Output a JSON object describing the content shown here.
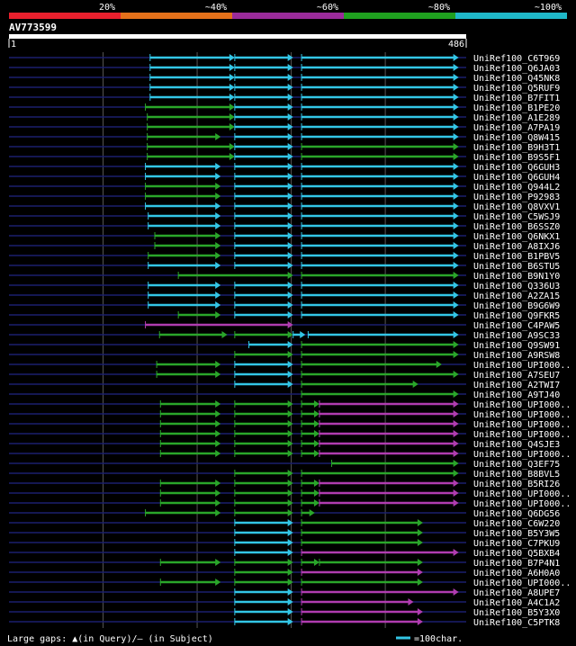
{
  "legend": {
    "ticks": [
      {
        "label": "20%",
        "color": "#e8202d"
      },
      {
        "label": "~40%",
        "color": "#e5711a"
      },
      {
        "label": "~60%",
        "color": "#9a2b9a"
      },
      {
        "label": "~80%",
        "color": "#1fa01f"
      },
      {
        "label": "~100%",
        "color": "#1fb8c8"
      }
    ]
  },
  "query": {
    "name": "AV773599",
    "start_label": "1",
    "end_label": "486",
    "length": 486
  },
  "colors": {
    "cyan": "#33c6e6",
    "green": "#2aa62a",
    "magenta": "#b03cb0",
    "navy": "#1a1f6e",
    "grid": "#555555"
  },
  "footer": {
    "gaps_text": "Large gaps: ▲(in Query)/– (in Subject)",
    "scale_text": "=100char."
  },
  "chart_data": {
    "type": "alignment-overview",
    "x_unit": "query residue",
    "rows": [
      {
        "label": "UniRef100_C6T969",
        "segs": [
          [
            150,
            240,
            "c"
          ],
          [
            240,
            302,
            "c"
          ],
          [
            311,
            478,
            "c"
          ]
        ]
      },
      {
        "label": "UniRef100_Q6JA03",
        "segs": [
          [
            150,
            240,
            "c"
          ],
          [
            240,
            302,
            "c"
          ],
          [
            311,
            478,
            "c"
          ]
        ]
      },
      {
        "label": "UniRef100_Q45NK8",
        "segs": [
          [
            150,
            240,
            "c"
          ],
          [
            240,
            302,
            "c"
          ],
          [
            311,
            478,
            "c"
          ]
        ]
      },
      {
        "label": "UniRef100_Q5RUF9",
        "segs": [
          [
            150,
            240,
            "c"
          ],
          [
            240,
            302,
            "c"
          ],
          [
            311,
            478,
            "c"
          ]
        ]
      },
      {
        "label": "UniRef100_B7FIT1",
        "segs": [
          [
            150,
            240,
            "c"
          ],
          [
            240,
            302,
            "c"
          ],
          [
            311,
            478,
            "c"
          ]
        ]
      },
      {
        "label": "UniRef100_B1PE20",
        "segs": [
          [
            145,
            240,
            "g"
          ],
          [
            240,
            302,
            "c"
          ],
          [
            311,
            478,
            "c"
          ]
        ]
      },
      {
        "label": "UniRef100_A1E289",
        "segs": [
          [
            147,
            240,
            "g"
          ],
          [
            240,
            302,
            "c"
          ],
          [
            311,
            478,
            "c"
          ]
        ]
      },
      {
        "label": "UniRef100_A7PA19",
        "segs": [
          [
            147,
            240,
            "g"
          ],
          [
            240,
            302,
            "c"
          ],
          [
            311,
            478,
            "c"
          ]
        ]
      },
      {
        "label": "UniRef100_Q8W415",
        "segs": [
          [
            147,
            225,
            "g"
          ],
          [
            240,
            302,
            "c"
          ],
          [
            311,
            478,
            "c"
          ]
        ]
      },
      {
        "label": "UniRef100_B9H3T1",
        "segs": [
          [
            147,
            240,
            "g"
          ],
          [
            240,
            302,
            "c"
          ],
          [
            311,
            478,
            "g"
          ]
        ]
      },
      {
        "label": "UniRef100_B9S5F1",
        "segs": [
          [
            147,
            240,
            "g"
          ],
          [
            240,
            302,
            "c"
          ],
          [
            311,
            478,
            "g"
          ]
        ]
      },
      {
        "label": "UniRef100_Q6GUH3",
        "segs": [
          [
            145,
            225,
            "c"
          ],
          [
            240,
            302,
            "c"
          ],
          [
            311,
            478,
            "c"
          ]
        ]
      },
      {
        "label": "UniRef100_Q6GUH4",
        "segs": [
          [
            145,
            225,
            "c"
          ],
          [
            240,
            302,
            "c"
          ],
          [
            311,
            478,
            "c"
          ]
        ]
      },
      {
        "label": "UniRef100_Q944L2",
        "segs": [
          [
            145,
            225,
            "g"
          ],
          [
            240,
            302,
            "c"
          ],
          [
            311,
            478,
            "c"
          ]
        ]
      },
      {
        "label": "UniRef100_P92983",
        "segs": [
          [
            145,
            225,
            "g"
          ],
          [
            240,
            302,
            "c"
          ],
          [
            311,
            478,
            "c"
          ]
        ]
      },
      {
        "label": "UniRef100_Q8VXV1",
        "segs": [
          [
            145,
            225,
            "c"
          ],
          [
            240,
            302,
            "c"
          ],
          [
            311,
            478,
            "c"
          ]
        ]
      },
      {
        "label": "UniRef100_C5WSJ9",
        "segs": [
          [
            148,
            225,
            "c"
          ],
          [
            240,
            302,
            "c"
          ],
          [
            311,
            478,
            "c"
          ]
        ]
      },
      {
        "label": "UniRef100_B6SSZ0",
        "segs": [
          [
            148,
            225,
            "c"
          ],
          [
            240,
            302,
            "c"
          ],
          [
            311,
            478,
            "c"
          ]
        ]
      },
      {
        "label": "UniRef100_Q6NKX1",
        "segs": [
          [
            155,
            225,
            "g"
          ],
          [
            240,
            302,
            "c"
          ],
          [
            311,
            478,
            "c"
          ]
        ]
      },
      {
        "label": "UniRef100_A8IXJ6",
        "segs": [
          [
            155,
            225,
            "g"
          ],
          [
            240,
            302,
            "c"
          ],
          [
            311,
            478,
            "c"
          ]
        ]
      },
      {
        "label": "UniRef100_B1PBV5",
        "segs": [
          [
            148,
            225,
            "g"
          ],
          [
            240,
            302,
            "c"
          ],
          [
            311,
            478,
            "c"
          ]
        ]
      },
      {
        "label": "UniRef100_B6STU5",
        "segs": [
          [
            148,
            225,
            "c"
          ],
          [
            240,
            302,
            "c"
          ],
          [
            311,
            478,
            "c"
          ]
        ]
      },
      {
        "label": "UniRef100_B9N1Y0",
        "segs": [
          [
            180,
            302,
            "g"
          ],
          [
            311,
            478,
            "g"
          ]
        ]
      },
      {
        "label": "UniRef100_Q336U3",
        "segs": [
          [
            148,
            225,
            "c"
          ],
          [
            240,
            302,
            "c"
          ],
          [
            311,
            478,
            "c"
          ]
        ]
      },
      {
        "label": "UniRef100_A2ZA15",
        "segs": [
          [
            148,
            225,
            "c"
          ],
          [
            240,
            302,
            "c"
          ],
          [
            311,
            478,
            "c"
          ]
        ]
      },
      {
        "label": "UniRef100_B9G6W9",
        "segs": [
          [
            148,
            225,
            "c"
          ],
          [
            240,
            302,
            "c"
          ],
          [
            311,
            478,
            "c"
          ]
        ]
      },
      {
        "label": "UniRef100_Q9FKR5",
        "segs": [
          [
            180,
            225,
            "g"
          ],
          [
            240,
            302,
            "c"
          ],
          [
            311,
            478,
            "c"
          ]
        ]
      },
      {
        "label": "UniRef100_C4PAW5",
        "segs": [
          [
            145,
            302,
            "m"
          ]
        ]
      },
      {
        "label": "UniRef100_A9SC33",
        "segs": [
          [
            160,
            232,
            "g"
          ],
          [
            240,
            302,
            "g"
          ],
          [
            302,
            315,
            "c"
          ],
          [
            318,
            478,
            "c"
          ]
        ]
      },
      {
        "label": "UniRef100_Q9SW91",
        "segs": [
          [
            255,
            302,
            "c"
          ],
          [
            311,
            478,
            "g"
          ]
        ]
      },
      {
        "label": "UniRef100_A9RSW8",
        "segs": [
          [
            240,
            302,
            "g"
          ],
          [
            311,
            478,
            "g"
          ]
        ]
      },
      {
        "label": "UniRef100_UPI000..",
        "segs": [
          [
            157,
            225,
            "g"
          ],
          [
            240,
            302,
            "c"
          ],
          [
            311,
            460,
            "g"
          ]
        ]
      },
      {
        "label": "UniRef100_A7SEU7",
        "segs": [
          [
            157,
            225,
            "g"
          ],
          [
            240,
            302,
            "c"
          ],
          [
            311,
            478,
            "g"
          ]
        ]
      },
      {
        "label": "UniRef100_A2TWI7",
        "segs": [
          [
            240,
            302,
            "c"
          ],
          [
            311,
            435,
            "g"
          ]
        ]
      },
      {
        "label": "UniRef100_A9TJ40",
        "segs": [
          [
            311,
            478,
            "g"
          ]
        ]
      },
      {
        "label": "UniRef100_UPI000..",
        "segs": [
          [
            161,
            225,
            "g"
          ],
          [
            240,
            302,
            "g"
          ],
          [
            311,
            330,
            "g"
          ],
          [
            330,
            478,
            "m"
          ]
        ]
      },
      {
        "label": "UniRef100_UPI000..",
        "segs": [
          [
            161,
            225,
            "g"
          ],
          [
            240,
            302,
            "g"
          ],
          [
            311,
            330,
            "g"
          ],
          [
            330,
            478,
            "m"
          ]
        ]
      },
      {
        "label": "UniRef100_UPI000..",
        "segs": [
          [
            161,
            225,
            "g"
          ],
          [
            240,
            302,
            "g"
          ],
          [
            311,
            330,
            "g"
          ],
          [
            330,
            478,
            "m"
          ]
        ]
      },
      {
        "label": "UniRef100_UPI000..",
        "segs": [
          [
            161,
            225,
            "g"
          ],
          [
            240,
            302,
            "g"
          ],
          [
            311,
            330,
            "g"
          ],
          [
            330,
            478,
            "m"
          ]
        ]
      },
      {
        "label": "UniRef100_Q4SJE3",
        "segs": [
          [
            161,
            225,
            "g"
          ],
          [
            240,
            302,
            "g"
          ],
          [
            311,
            330,
            "g"
          ],
          [
            330,
            478,
            "m"
          ]
        ]
      },
      {
        "label": "UniRef100_UPI000..",
        "segs": [
          [
            161,
            225,
            "g"
          ],
          [
            240,
            302,
            "g"
          ],
          [
            311,
            330,
            "g"
          ],
          [
            330,
            478,
            "m"
          ]
        ]
      },
      {
        "label": "UniRef100_Q3EF75",
        "segs": [
          [
            343,
            478,
            "g"
          ]
        ]
      },
      {
        "label": "UniRef100_B8BVL5",
        "segs": [
          [
            240,
            302,
            "g"
          ],
          [
            311,
            478,
            "g"
          ]
        ]
      },
      {
        "label": "UniRef100_B5RI26",
        "segs": [
          [
            161,
            225,
            "g"
          ],
          [
            240,
            302,
            "g"
          ],
          [
            311,
            330,
            "g"
          ],
          [
            330,
            478,
            "m"
          ]
        ]
      },
      {
        "label": "UniRef100_UPI000..",
        "segs": [
          [
            161,
            225,
            "g"
          ],
          [
            240,
            302,
            "g"
          ],
          [
            311,
            330,
            "g"
          ],
          [
            330,
            478,
            "m"
          ]
        ]
      },
      {
        "label": "UniRef100_UPI000..",
        "segs": [
          [
            161,
            225,
            "g"
          ],
          [
            240,
            302,
            "g"
          ],
          [
            311,
            330,
            "g"
          ],
          [
            330,
            478,
            "m"
          ]
        ]
      },
      {
        "label": "UniRef100_Q6DG56",
        "segs": [
          [
            145,
            225,
            "g"
          ],
          [
            240,
            302,
            "g"
          ],
          [
            311,
            325,
            "g"
          ]
        ]
      },
      {
        "label": "UniRef100_C6W220",
        "segs": [
          [
            240,
            302,
            "c"
          ],
          [
            311,
            440,
            "g"
          ]
        ]
      },
      {
        "label": "UniRef100_B5Y3W5",
        "segs": [
          [
            240,
            302,
            "c"
          ],
          [
            311,
            440,
            "g"
          ]
        ]
      },
      {
        "label": "UniRef100_C7PKU9",
        "segs": [
          [
            240,
            302,
            "c"
          ],
          [
            311,
            440,
            "g"
          ]
        ]
      },
      {
        "label": "UniRef100_Q5BXB4",
        "segs": [
          [
            240,
            302,
            "c"
          ],
          [
            311,
            478,
            "m"
          ]
        ]
      },
      {
        "label": "UniRef100_B7P4N1",
        "segs": [
          [
            161,
            225,
            "g"
          ],
          [
            240,
            302,
            "g"
          ],
          [
            311,
            330,
            "g"
          ],
          [
            330,
            440,
            "g"
          ]
        ]
      },
      {
        "label": "UniRef100_A6H0A0",
        "segs": [
          [
            240,
            302,
            "g"
          ],
          [
            311,
            440,
            "m"
          ]
        ]
      },
      {
        "label": "UniRef100_UPI000..",
        "segs": [
          [
            161,
            225,
            "g"
          ],
          [
            240,
            302,
            "g"
          ],
          [
            311,
            440,
            "g"
          ]
        ]
      },
      {
        "label": "UniRef100_A8UPE7",
        "segs": [
          [
            240,
            302,
            "c"
          ],
          [
            311,
            478,
            "m"
          ]
        ]
      },
      {
        "label": "UniRef100_A4C1A2",
        "segs": [
          [
            240,
            302,
            "c"
          ],
          [
            311,
            430,
            "m"
          ]
        ]
      },
      {
        "label": "UniRef100_B5Y3X0",
        "segs": [
          [
            240,
            302,
            "c"
          ],
          [
            311,
            440,
            "m"
          ]
        ]
      },
      {
        "label": "UniRef100_C5PTK8",
        "segs": [
          [
            240,
            302,
            "c"
          ],
          [
            311,
            440,
            "m"
          ]
        ]
      }
    ]
  }
}
